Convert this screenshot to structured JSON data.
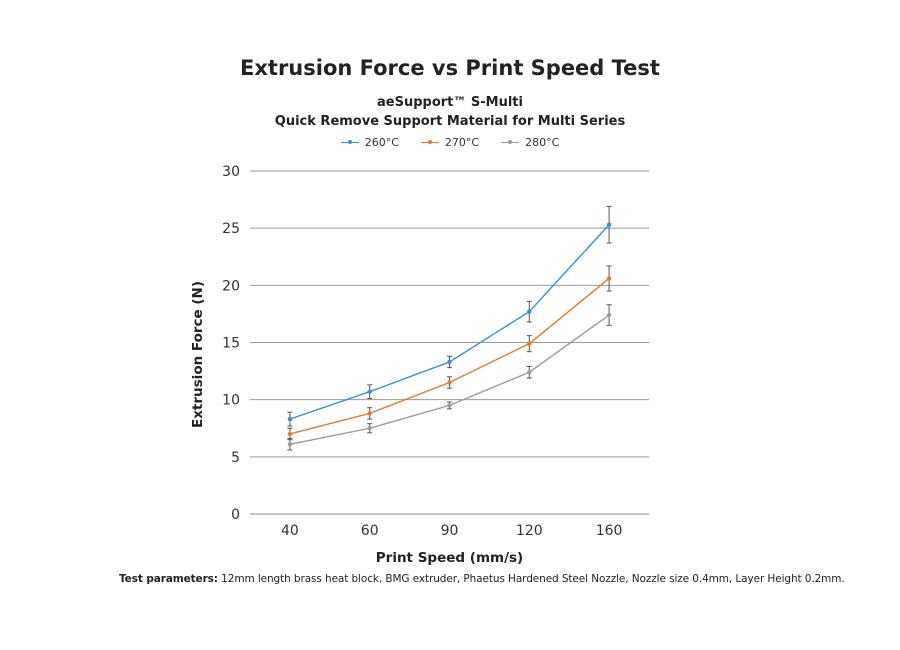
{
  "chart_data": {
    "type": "line",
    "title": "Extrusion Force vs Print Speed Test",
    "subtitle_lines": [
      "aeSupport™ S-Multi",
      "Quick Remove Support Material for Multi Series"
    ],
    "xlabel": "Print Speed (mm/s)",
    "ylabel": "Extrusion Force (N)",
    "categories": [
      "40",
      "60",
      "90",
      "120",
      "160"
    ],
    "ylim": [
      0,
      30
    ],
    "yticks": [
      "0",
      "5",
      "10",
      "15",
      "20",
      "25",
      "30"
    ],
    "grid": true,
    "legend_position": "top",
    "series": [
      {
        "name": "260°C",
        "color": "#3d8fd1",
        "values": [
          8.3,
          10.7,
          13.3,
          17.7,
          25.3
        ],
        "error": [
          0.6,
          0.6,
          0.5,
          0.9,
          1.6
        ]
      },
      {
        "name": "270°C",
        "color": "#e8772e",
        "values": [
          7.0,
          8.8,
          11.5,
          14.9,
          20.6
        ],
        "error": [
          0.5,
          0.5,
          0.5,
          0.7,
          1.1
        ]
      },
      {
        "name": "280°C",
        "color": "#9b9b9b",
        "values": [
          6.1,
          7.5,
          9.5,
          12.4,
          17.4
        ],
        "error": [
          0.5,
          0.4,
          0.3,
          0.5,
          0.9
        ]
      }
    ]
  },
  "footnote": {
    "label": "Test parameters:",
    "text": " 12mm length brass heat block, BMG extruder, Phaetus Hardened Steel Nozzle, Nozzle size 0.4mm, Layer Height 0.2mm."
  }
}
